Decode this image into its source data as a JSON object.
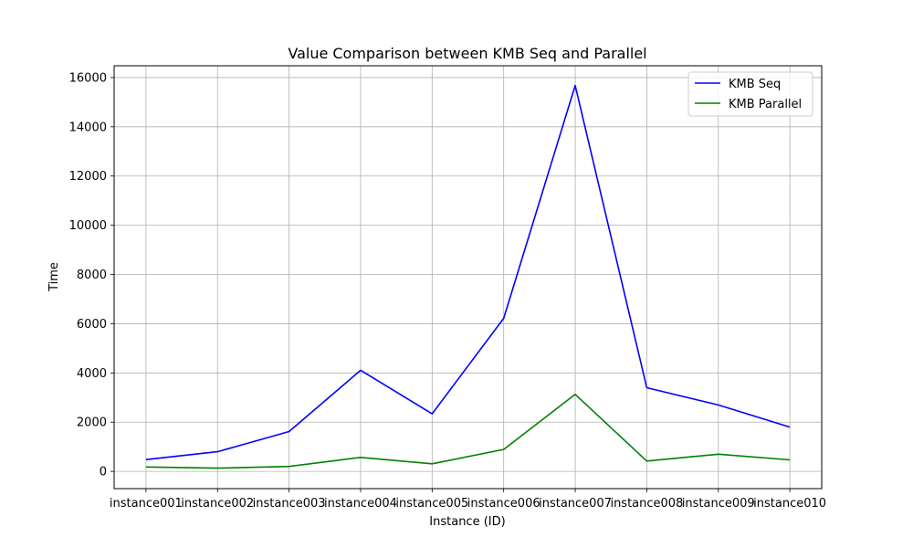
{
  "chart_data": {
    "type": "line",
    "title": "Value Comparison between KMB Seq and Parallel",
    "xlabel": "Instance (ID)",
    "ylabel": "Time",
    "categories": [
      "instance001",
      "instance002",
      "instance003",
      "instance004",
      "instance005",
      "instance006",
      "instance007",
      "instance008",
      "instance009",
      "instance010"
    ],
    "series": [
      {
        "name": "KMB Seq",
        "color": "#0000ff",
        "values": [
          480,
          800,
          1620,
          4110,
          2340,
          6220,
          15680,
          3400,
          2700,
          1800
        ]
      },
      {
        "name": "KMB Parallel",
        "color": "#008000",
        "values": [
          180,
          130,
          200,
          570,
          310,
          890,
          3130,
          420,
          700,
          470
        ]
      }
    ],
    "yticks": [
      0,
      2000,
      4000,
      6000,
      8000,
      10000,
      12000,
      14000,
      16000
    ],
    "ylim": [
      -700,
      16480
    ],
    "grid": true,
    "legend_position": "upper-right"
  }
}
